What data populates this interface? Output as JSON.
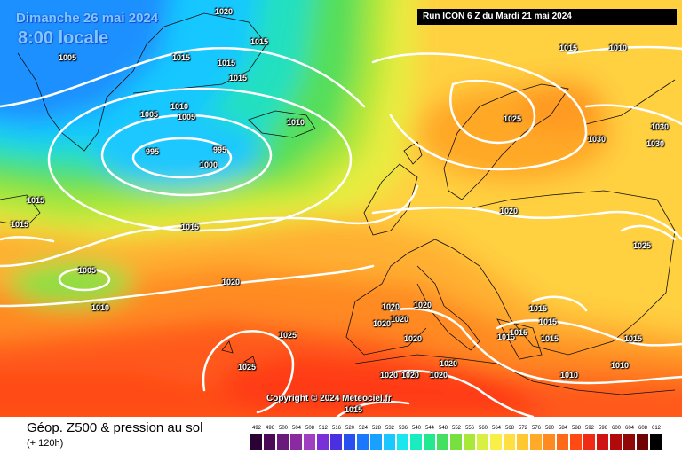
{
  "header": {
    "date": "Dimanche 26 mai 2024",
    "time": "8:00 locale",
    "run": "Run ICON 6 Z du Mardi 21 mai 2024"
  },
  "map": {
    "copyright": "Copyright © 2024 Meteociel.fr",
    "pressure_labels": [
      "1020",
      "1015",
      "1015",
      "1005",
      "1015",
      "1015",
      "1010",
      "1005",
      "1005",
      "995",
      "995",
      "1000",
      "1010",
      "1015",
      "1015",
      "1015",
      "1005",
      "1010",
      "1015",
      "1020",
      "1025",
      "1025",
      "1020",
      "1020",
      "1020",
      "1020",
      "1020",
      "1020",
      "1020",
      "1020",
      "1020",
      "1015",
      "1015",
      "1015",
      "1015",
      "1010",
      "1010",
      "1015",
      "1015",
      "1025",
      "1020",
      "1025",
      "1030",
      "1030",
      "1030",
      "1015",
      "1010"
    ]
  },
  "footer": {
    "title": "Géop. Z500 & pression au sol",
    "subtitle": "(+ 120h)"
  },
  "legend": {
    "values": [
      "492",
      "496",
      "500",
      "504",
      "508",
      "512",
      "516",
      "520",
      "524",
      "528",
      "532",
      "536",
      "540",
      "544",
      "548",
      "552",
      "556",
      "560",
      "564",
      "568",
      "572",
      "576",
      "580",
      "584",
      "588",
      "592",
      "596",
      "600",
      "604",
      "608",
      "612"
    ],
    "colors": [
      "#2a0233",
      "#4a0a55",
      "#6a1a7a",
      "#8a2aa0",
      "#9e40c0",
      "#7a30d8",
      "#4a30e0",
      "#2850f0",
      "#1a78ff",
      "#1aa0ff",
      "#1ac8ff",
      "#1ae6f0",
      "#1aecc0",
      "#22e890",
      "#44e060",
      "#77e040",
      "#aae838",
      "#d8f040",
      "#f8f048",
      "#ffe040",
      "#ffc830",
      "#ffaa28",
      "#ff8a20",
      "#ff6a18",
      "#ff4a14",
      "#f02a14",
      "#d01414",
      "#b00a0a",
      "#900808",
      "#700404",
      "#000000"
    ]
  }
}
